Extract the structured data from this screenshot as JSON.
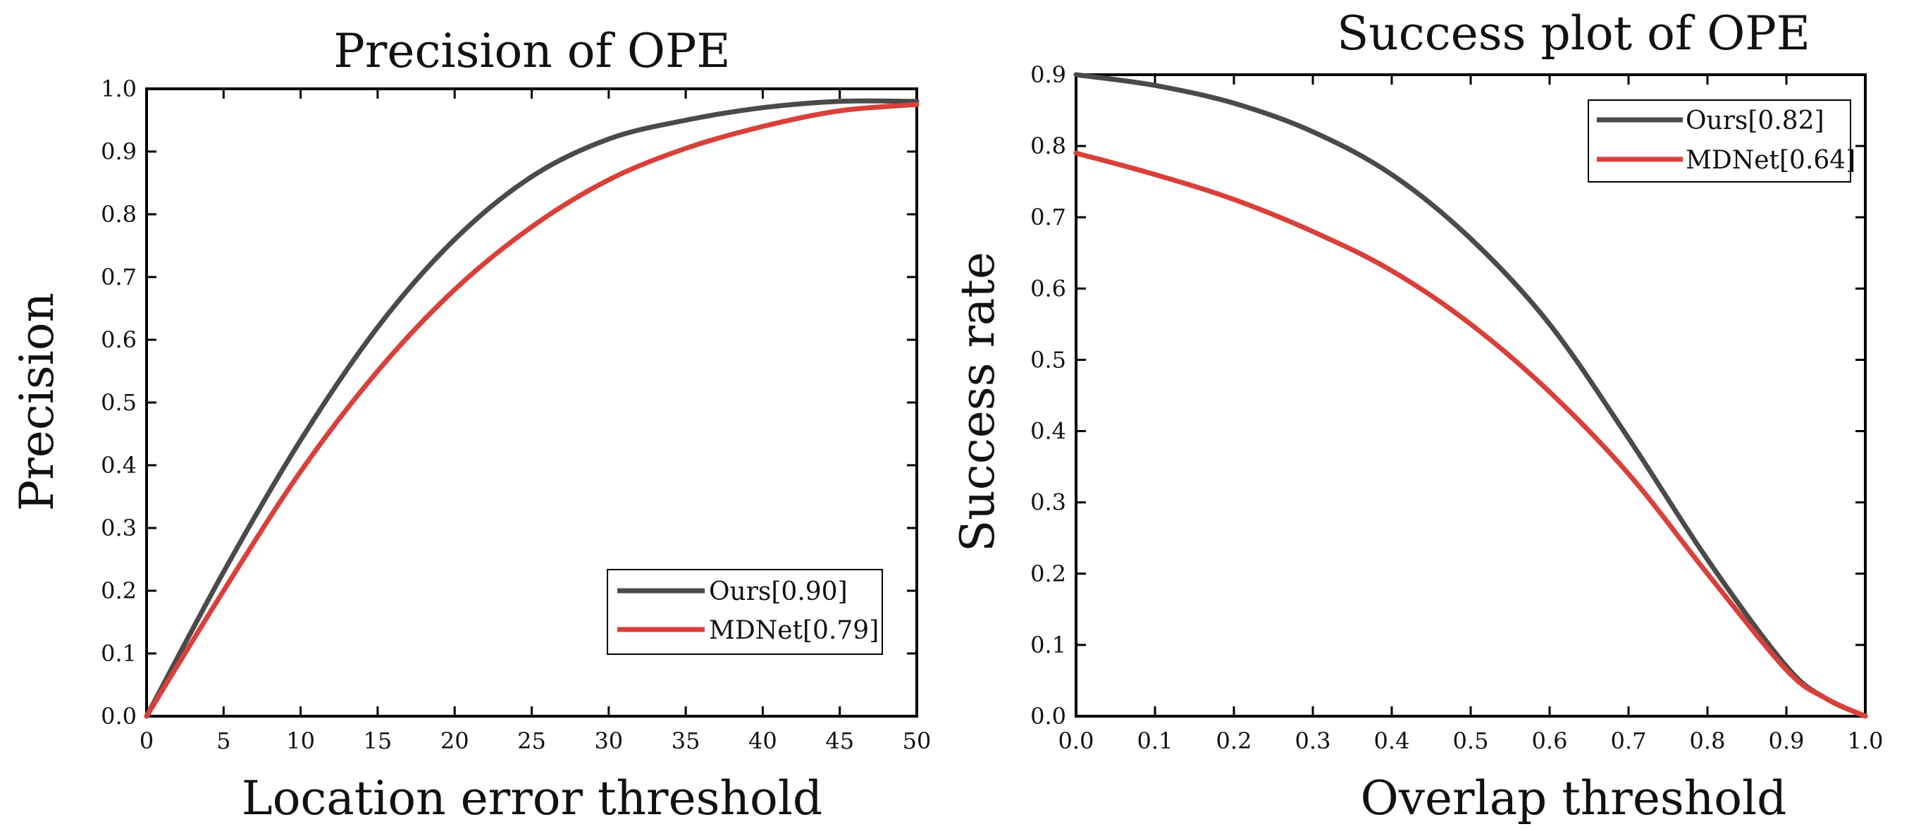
{
  "chart_data": [
    {
      "type": "line",
      "title": "Precision of OPE",
      "xlabel": "Location error threshold",
      "ylabel": "Precision",
      "xlim": [
        0,
        50
      ],
      "ylim": [
        0,
        1.0
      ],
      "xticks": [
        "0",
        "5",
        "10",
        "15",
        "20",
        "25",
        "30",
        "35",
        "40",
        "45",
        "50"
      ],
      "yticks": [
        "0.0",
        "0.1",
        "0.2",
        "0.3",
        "0.4",
        "0.5",
        "0.6",
        "0.7",
        "0.8",
        "0.9",
        "1.0"
      ],
      "legend_position": "lower-right",
      "series": [
        {
          "name": "Ours[0.90]",
          "color": "#4a4a4a",
          "x": [
            0,
            5,
            10,
            15,
            20,
            25,
            30,
            35,
            40,
            45,
            50
          ],
          "values": [
            0.0,
            0.23,
            0.44,
            0.62,
            0.76,
            0.86,
            0.92,
            0.95,
            0.97,
            0.98,
            0.98
          ]
        },
        {
          "name": "MDNet[0.79]",
          "color": "#d9403a",
          "x": [
            0,
            5,
            10,
            15,
            20,
            25,
            30,
            35,
            40,
            45,
            50
          ],
          "values": [
            0.0,
            0.2,
            0.39,
            0.55,
            0.68,
            0.78,
            0.855,
            0.905,
            0.94,
            0.965,
            0.975
          ]
        }
      ]
    },
    {
      "type": "line",
      "title": "Success plot of OPE",
      "xlabel": "Overlap threshold",
      "ylabel": "Success rate",
      "xlim": [
        0,
        1.0
      ],
      "ylim": [
        0,
        0.9
      ],
      "xticks": [
        "0.0",
        "0.1",
        "0.2",
        "0.3",
        "0.4",
        "0.5",
        "0.6",
        "0.7",
        "0.8",
        "0.9",
        "1.0"
      ],
      "yticks": [
        "0.0",
        "0.1",
        "0.2",
        "0.3",
        "0.4",
        "0.5",
        "0.6",
        "0.7",
        "0.8",
        "0.9"
      ],
      "legend_position": "top-right",
      "series": [
        {
          "name": "Ours[0.82]",
          "color": "#4a4a4a",
          "x": [
            0.0,
            0.1,
            0.2,
            0.3,
            0.4,
            0.5,
            0.6,
            0.7,
            0.8,
            0.9,
            0.95,
            1.0
          ],
          "values": [
            0.9,
            0.885,
            0.86,
            0.82,
            0.76,
            0.67,
            0.55,
            0.39,
            0.22,
            0.07,
            0.025,
            0.0
          ]
        },
        {
          "name": "MDNet[0.64]",
          "color": "#d9403a",
          "x": [
            0.0,
            0.1,
            0.2,
            0.3,
            0.4,
            0.5,
            0.6,
            0.7,
            0.8,
            0.9,
            0.95,
            1.0
          ],
          "values": [
            0.79,
            0.76,
            0.725,
            0.68,
            0.625,
            0.55,
            0.455,
            0.34,
            0.2,
            0.065,
            0.025,
            0.0
          ]
        }
      ]
    }
  ]
}
